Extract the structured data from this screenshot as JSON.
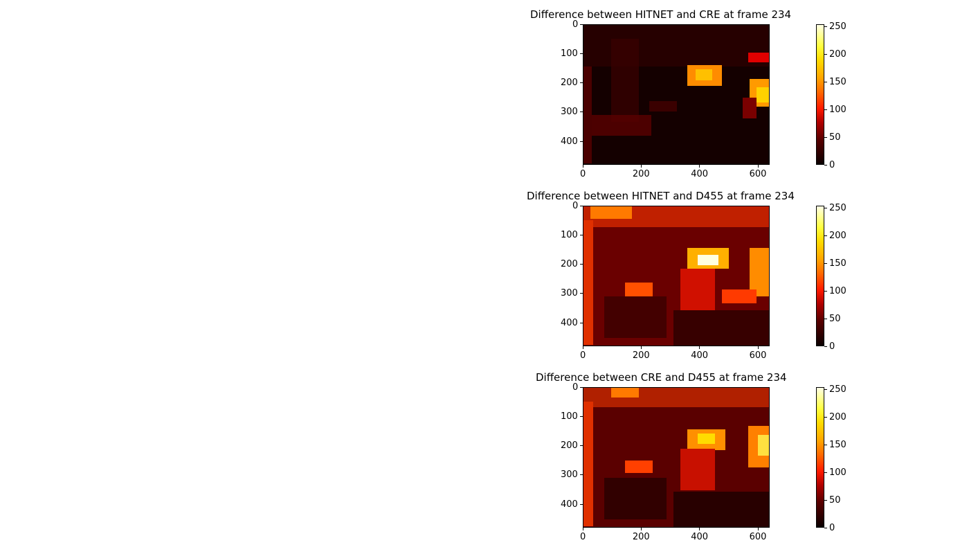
{
  "chart_data": [
    {
      "type": "heatmap",
      "title": "Difference between HITNET and CRE at frame 234",
      "xlabel": "",
      "ylabel": "",
      "xlim": [
        0,
        640
      ],
      "ylim": [
        480,
        0
      ],
      "xticks": [
        "0",
        "200",
        "400",
        "600"
      ],
      "yticks": [
        "0",
        "100",
        "200",
        "300",
        "400"
      ],
      "colorbar": {
        "colormap": "hot",
        "range": [
          0,
          255
        ],
        "ticks": [
          "0",
          "50",
          "100",
          "150",
          "200",
          "250"
        ]
      }
    },
    {
      "type": "heatmap",
      "title": "Difference between HITNET and D455 at frame 234",
      "xlabel": "",
      "ylabel": "",
      "xlim": [
        0,
        640
      ],
      "ylim": [
        480,
        0
      ],
      "xticks": [
        "0",
        "200",
        "400",
        "600"
      ],
      "yticks": [
        "0",
        "100",
        "200",
        "300",
        "400"
      ],
      "colorbar": {
        "colormap": "hot",
        "range": [
          0,
          255
        ],
        "ticks": [
          "0",
          "50",
          "100",
          "150",
          "200",
          "250"
        ]
      }
    },
    {
      "type": "heatmap",
      "title": "Difference between CRE and D455 at frame 234",
      "xlabel": "",
      "ylabel": "",
      "xlim": [
        0,
        640
      ],
      "ylim": [
        480,
        0
      ],
      "xticks": [
        "0",
        "200",
        "400",
        "600"
      ],
      "yticks": [
        "0",
        "100",
        "200",
        "300",
        "400"
      ],
      "colorbar": {
        "colormap": "hot",
        "range": [
          0,
          255
        ],
        "ticks": [
          "0",
          "50",
          "100",
          "150",
          "200",
          "250"
        ]
      }
    }
  ]
}
